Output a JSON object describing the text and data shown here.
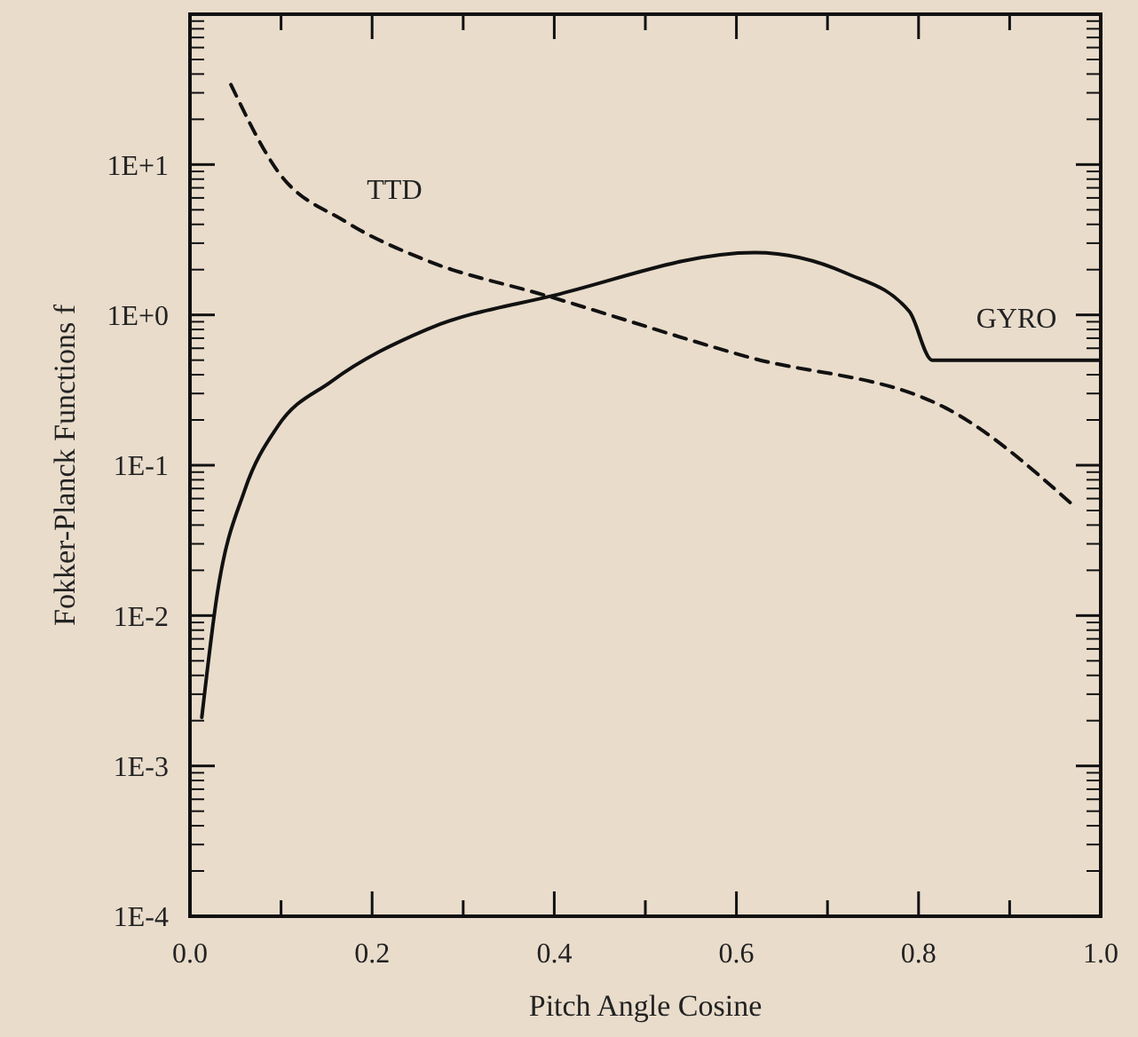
{
  "chart_data": {
    "type": "line",
    "xlabel": "Pitch Angle Cosine",
    "ylabel": "Fokker-Planck Functions f",
    "log": "y",
    "xlim": [
      0,
      1
    ],
    "ylim": [
      0.0001,
      100
    ],
    "xticks": [
      {
        "value": 0,
        "label": "0.0"
      },
      {
        "value": 0.1,
        "label": null
      },
      {
        "value": 0.2,
        "label": "0.2"
      },
      {
        "value": 0.3,
        "label": null
      },
      {
        "value": 0.4,
        "label": "0.4"
      },
      {
        "value": 0.5,
        "label": null
      },
      {
        "value": 0.6,
        "label": "0.6"
      },
      {
        "value": 0.7,
        "label": null
      },
      {
        "value": 0.8,
        "label": "0.8"
      },
      {
        "value": 0.9,
        "label": null
      },
      {
        "value": 1,
        "label": "1.0"
      }
    ],
    "yticks": [
      {
        "value": 0.0001,
        "label": "1E-4"
      },
      {
        "value": 0.001,
        "label": "1E-3"
      },
      {
        "value": 0.01,
        "label": "1E-2"
      },
      {
        "value": 0.1,
        "label": "1E-1"
      },
      {
        "value": 1,
        "label": "1E+0"
      },
      {
        "value": 10,
        "label": "1E+1"
      }
    ],
    "grid": false,
    "marker": "none",
    "series": [
      {
        "name": "GYRO",
        "color": "#111111",
        "line_style": "solid",
        "x": [
          0.013,
          0.03,
          0.06,
          0.096,
          0.155,
          0.26,
          0.4,
          0.62,
          0.72,
          0.79,
          0.815,
          1.0
        ],
        "values": [
          0.0021,
          0.014,
          0.068,
          0.18,
          0.36,
          0.8,
          1.35,
          2.6,
          1.9,
          1.05,
          0.5,
          0.5
        ]
      },
      {
        "name": "TTD",
        "color": "#111111",
        "line_style": "dashed",
        "x": [
          0.045,
          0.096,
          0.17,
          0.26,
          0.39,
          0.61,
          0.83,
          0.97
        ],
        "values": [
          34,
          9.1,
          4.2,
          2.3,
          1.35,
          0.53,
          0.24,
          0.054
        ]
      }
    ]
  }
}
